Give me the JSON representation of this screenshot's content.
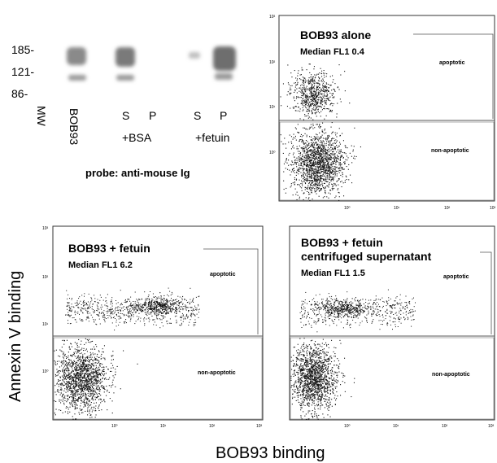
{
  "blot": {
    "mw_markers": [
      "185-",
      "121-",
      "86-"
    ],
    "mw_label": "MW",
    "lanes": [
      {
        "label": "BOB93"
      },
      {
        "label": "S"
      },
      {
        "label": "P"
      },
      {
        "label": "S"
      },
      {
        "label": "P"
      }
    ],
    "group_labels": [
      "+BSA",
      "+fetuin"
    ],
    "probe": "probe: anti-mouse Ig"
  },
  "panels": [
    {
      "title_lines": [
        "BOB93 alone"
      ],
      "median": "Median FL1 0.4",
      "gate_upper": "apoptotic",
      "gate_lower": "non-apoptotic"
    },
    {
      "title_lines": [
        "BOB93 + fetuin"
      ],
      "median": "Median FL1 6.2",
      "gate_upper": "apoptotic",
      "gate_lower": "non-apoptotic"
    },
    {
      "title_lines": [
        "BOB93 + fetuin",
        "centrifuged supernatant"
      ],
      "median": "Median FL1 1.5",
      "gate_upper": "apoptotic",
      "gate_lower": "non-apoptotic"
    }
  ],
  "axes": {
    "y_label": "Annexin V binding",
    "x_label": "BOB93 binding",
    "tick_labels": [
      "10⁰",
      "10¹",
      "10²",
      "10³"
    ]
  },
  "colors": {
    "band": "#8a8a8a",
    "dots": "#111111"
  }
}
